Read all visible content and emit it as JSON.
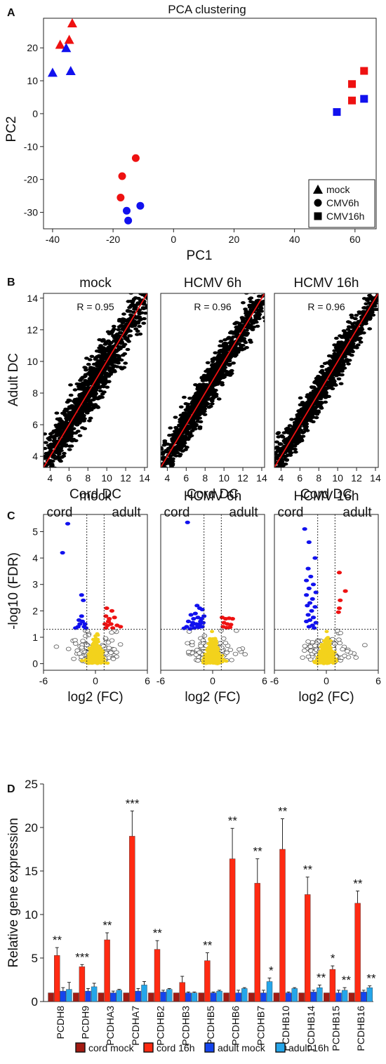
{
  "chart_data": [
    {
      "panel": "A",
      "type": "scatter",
      "title": "PCA clustering",
      "xlabel": "PC1",
      "ylabel": "PC2",
      "xlim": [
        -43,
        67
      ],
      "ylim": [
        -35,
        29
      ],
      "xticks": [
        "-40",
        "-20",
        "0",
        "20",
        "40",
        "60"
      ],
      "yticks": [
        "-30",
        "-20",
        "-10",
        "0",
        "10",
        "20"
      ],
      "legend_position": "bottom-right",
      "legend": [
        {
          "label": "mock",
          "shape": "triangle"
        },
        {
          "label": "CMV6h",
          "shape": "circle"
        },
        {
          "label": "CMV16h",
          "shape": "square"
        }
      ],
      "colors": {
        "red": "#ee1111",
        "blue": "#1111ee"
      },
      "points": [
        {
          "x": -33.5,
          "y": 27.5,
          "shape": "triangle",
          "color": "red"
        },
        {
          "x": -37.5,
          "y": 21,
          "shape": "triangle",
          "color": "red"
        },
        {
          "x": -34.5,
          "y": 22.5,
          "shape": "triangle",
          "color": "red"
        },
        {
          "x": -35.5,
          "y": 20,
          "shape": "triangle",
          "color": "blue"
        },
        {
          "x": -40,
          "y": 12.5,
          "shape": "triangle",
          "color": "blue"
        },
        {
          "x": -34,
          "y": 13,
          "shape": "triangle",
          "color": "blue"
        },
        {
          "x": -12.5,
          "y": -13.5,
          "shape": "circle",
          "color": "red"
        },
        {
          "x": -17,
          "y": -19,
          "shape": "circle",
          "color": "red"
        },
        {
          "x": -17.5,
          "y": -25.5,
          "shape": "circle",
          "color": "red"
        },
        {
          "x": -15.5,
          "y": -29.5,
          "shape": "circle",
          "color": "blue"
        },
        {
          "x": -11,
          "y": -28,
          "shape": "circle",
          "color": "blue"
        },
        {
          "x": -15,
          "y": -32.5,
          "shape": "circle",
          "color": "blue"
        },
        {
          "x": 59,
          "y": 9,
          "shape": "square",
          "color": "red"
        },
        {
          "x": 63,
          "y": 13,
          "shape": "square",
          "color": "red"
        },
        {
          "x": 59,
          "y": 4,
          "shape": "square",
          "color": "red"
        },
        {
          "x": 63,
          "y": 4.5,
          "shape": "square",
          "color": "blue"
        },
        {
          "x": 54,
          "y": 0.5,
          "shape": "square",
          "color": "blue"
        }
      ]
    },
    {
      "panel": "B",
      "type": "scatter",
      "ylabel": "Adult DC",
      "xlabel": "Cord DC",
      "xlim": [
        3.3,
        14.3
      ],
      "ylim": [
        3.3,
        14.3
      ],
      "xticks": [
        "4",
        "6",
        "8",
        "10",
        "12",
        "14"
      ],
      "yticks": [
        "4",
        "6",
        "8",
        "10",
        "12",
        "14"
      ],
      "fit_line_color": "#ee1111",
      "subplots": [
        {
          "title": "mock",
          "r": "R = 0.95"
        },
        {
          "title": "HCMV 6h",
          "r": "R = 0.96"
        },
        {
          "title": "HCMV 16h",
          "r": "R = 0.96"
        }
      ]
    },
    {
      "panel": "C",
      "type": "scatter",
      "ylabel": "-log10 (FDR)",
      "xlabel": "log2 (FC)",
      "xlim": [
        -6,
        6
      ],
      "ylim": [
        -0.25,
        5.65
      ],
      "xticks": [
        "-6",
        "0",
        "6"
      ],
      "yticks": [
        "0",
        "1",
        "2",
        "3",
        "4",
        "5"
      ],
      "side_labels": [
        "cord",
        "adult"
      ],
      "fc_threshold": 1,
      "fdr_threshold": 1.3,
      "colors": {
        "up": "#ee1111",
        "down": "#1111ee",
        "nonsig": "#f3d21c"
      },
      "subplots": [
        {
          "title": "mock",
          "down": [
            [
              -3.2,
              5.3
            ],
            [
              -3.8,
              4.2
            ],
            [
              -1.6,
              2.6
            ],
            [
              -1.4,
              2.4
            ],
            [
              -1.3,
              1.4
            ],
            [
              -1.5,
              1.6
            ],
            [
              -1.8,
              1.5
            ],
            [
              -2.0,
              1.4
            ],
            [
              -2.3,
              1.35
            ],
            [
              -1.2,
              1.5
            ],
            [
              -1.1,
              1.35
            ],
            [
              -1.6,
              1.8
            ],
            [
              -1.9,
              1.65
            ]
          ],
          "up": [
            [
              1.3,
              2.1
            ],
            [
              1.9,
              2.0
            ],
            [
              1.2,
              1.8
            ],
            [
              1.6,
              1.7
            ],
            [
              2.2,
              1.75
            ],
            [
              1.1,
              1.5
            ],
            [
              1.4,
              1.45
            ],
            [
              1.8,
              1.5
            ],
            [
              2.5,
              1.45
            ],
            [
              2.9,
              1.4
            ],
            [
              1.2,
              1.35
            ],
            [
              2.0,
              1.35
            ],
            [
              1.5,
              1.6
            ]
          ]
        },
        {
          "title": "HCMV 6h",
          "down": [
            [
              -2.9,
              5.35
            ],
            [
              -1.8,
              2.2
            ],
            [
              -1.2,
              2.05
            ],
            [
              -1.5,
              2.1
            ],
            [
              -2.0,
              1.9
            ],
            [
              -2.5,
              1.85
            ],
            [
              -1.3,
              1.7
            ],
            [
              -1.7,
              1.75
            ],
            [
              -2.2,
              1.7
            ],
            [
              -2.8,
              1.6
            ],
            [
              -1.1,
              1.55
            ],
            [
              -1.5,
              1.5
            ],
            [
              -1.9,
              1.5
            ],
            [
              -2.4,
              1.45
            ],
            [
              -3.0,
              1.4
            ],
            [
              -1.2,
              1.4
            ],
            [
              -1.6,
              1.38
            ],
            [
              -2.1,
              1.35
            ],
            [
              -2.6,
              1.32
            ],
            [
              -3.3,
              1.34
            ],
            [
              -1.4,
              1.6
            ],
            [
              -1.0,
              1.8
            ],
            [
              -2.3,
              1.55
            ],
            [
              -1.7,
              1.42
            ]
          ],
          "up": [
            [
              1.1,
              1.75
            ],
            [
              1.5,
              1.7
            ],
            [
              1.9,
              1.72
            ],
            [
              2.3,
              1.7
            ],
            [
              1.3,
              1.55
            ],
            [
              1.7,
              1.5
            ],
            [
              2.1,
              1.48
            ],
            [
              1.2,
              1.4
            ],
            [
              1.6,
              1.36
            ],
            [
              2.0,
              1.38
            ]
          ]
        },
        {
          "title": "HCMV 16h",
          "down": [
            [
              -2.5,
              5.1
            ],
            [
              -2.0,
              4.6
            ],
            [
              -1.3,
              4.0
            ],
            [
              -2.1,
              3.6
            ],
            [
              -1.8,
              3.3
            ],
            [
              -2.3,
              3.15
            ],
            [
              -1.5,
              3.0
            ],
            [
              -2.0,
              2.85
            ],
            [
              -1.2,
              2.7
            ],
            [
              -2.3,
              2.6
            ],
            [
              -1.6,
              2.45
            ],
            [
              -1.9,
              2.3
            ],
            [
              -2.2,
              2.2
            ],
            [
              -1.3,
              2.15
            ],
            [
              -1.7,
              2.0
            ],
            [
              -2.1,
              1.85
            ],
            [
              -1.5,
              1.75
            ],
            [
              -1.9,
              1.65
            ],
            [
              -2.3,
              1.6
            ],
            [
              -1.2,
              1.55
            ],
            [
              -1.6,
              1.45
            ],
            [
              -2.0,
              1.4
            ],
            [
              -1.4,
              1.35
            ]
          ],
          "up": [
            [
              1.5,
              3.45
            ],
            [
              2.2,
              2.75
            ],
            [
              1.6,
              2.4
            ],
            [
              1.5,
              2.1
            ],
            [
              1.4,
              1.95
            ]
          ]
        }
      ]
    },
    {
      "panel": "D",
      "type": "bar",
      "ylabel": "Relative gene expression",
      "ylim": [
        0,
        25
      ],
      "yticks": [
        "0",
        "5",
        "10",
        "15",
        "20",
        "25"
      ],
      "categories": [
        "PCDH8",
        "PCDH9",
        "PCDHA3",
        "PCDHA7",
        "PCDHB2",
        "PCDHB3",
        "PCDHB5",
        "PCDHB6",
        "PCDHB7",
        "PCDHB10",
        "PCDHB14",
        "PCDHB15",
        "PCDHB16"
      ],
      "series": [
        {
          "name": "cord mock",
          "color": "#a31a12",
          "values": [
            1,
            1,
            1,
            1,
            1,
            1,
            1,
            1,
            1,
            1,
            1,
            1,
            1
          ]
        },
        {
          "name": "cord 16h",
          "color": "#ff2a12",
          "values": [
            5.3,
            4.0,
            7.1,
            19.0,
            6.0,
            2.2,
            4.7,
            16.4,
            13.6,
            17.5,
            12.3,
            3.7,
            11.3
          ]
        },
        {
          "name": "adult mock",
          "color": "#1444ee",
          "values": [
            1.2,
            1.2,
            1.0,
            1.2,
            1.1,
            1.0,
            1.0,
            1.0,
            1.0,
            1.0,
            1.1,
            1.0,
            1.1
          ]
        },
        {
          "name": "adult 16h",
          "color": "#25a6ea",
          "values": [
            1.4,
            1.7,
            1.3,
            1.9,
            1.4,
            1.0,
            1.2,
            1.5,
            2.3,
            1.5,
            1.6,
            1.3,
            1.6
          ]
        }
      ],
      "errors": {
        "cord 16h": [
          0.9,
          0.25,
          0.8,
          2.9,
          1.0,
          0.7,
          0.9,
          3.5,
          2.8,
          3.5,
          2.0,
          0.4,
          1.4
        ],
        "adult mock": [
          0.4,
          0.3,
          0.2,
          0.3,
          0.2,
          0.1,
          0.1,
          0.3,
          0.3,
          0.1,
          0.2,
          0.3,
          0.2
        ],
        "adult 16h": [
          0.8,
          0.4,
          0.1,
          0.4,
          0.1,
          0.1,
          0.1,
          0.1,
          0.4,
          0.1,
          0.3,
          0.3,
          0.2
        ]
      },
      "significance": [
        {
          "category": "PCDH8",
          "series": "cord 16h",
          "label": "**"
        },
        {
          "category": "PCDH9",
          "series": "cord 16h",
          "label": "***"
        },
        {
          "category": "PCDHA3",
          "series": "cord 16h",
          "label": "**"
        },
        {
          "category": "PCDHA7",
          "series": "cord 16h",
          "label": "***"
        },
        {
          "category": "PCDHB2",
          "series": "cord 16h",
          "label": "**"
        },
        {
          "category": "PCDHB5",
          "series": "cord 16h",
          "label": "**"
        },
        {
          "category": "PCDHB6",
          "series": "cord 16h",
          "label": "**"
        },
        {
          "category": "PCDHB7",
          "series": "cord 16h",
          "label": "**"
        },
        {
          "category": "PCDHB7",
          "series": "adult 16h",
          "label": "*"
        },
        {
          "category": "PCDHB10",
          "series": "cord 16h",
          "label": "**"
        },
        {
          "category": "PCDHB14",
          "series": "cord 16h",
          "label": "**"
        },
        {
          "category": "PCDHB14",
          "series": "adult 16h",
          "label": "**"
        },
        {
          "category": "PCDHB15",
          "series": "cord 16h",
          "label": "*"
        },
        {
          "category": "PCDHB15",
          "series": "adult 16h",
          "label": "**"
        },
        {
          "category": "PCDHB16",
          "series": "cord 16h",
          "label": "**"
        },
        {
          "category": "PCDHB16",
          "series": "adult 16h",
          "label": "**"
        }
      ],
      "legend_position": "bottom"
    }
  ],
  "panel_labels": [
    "A",
    "B",
    "C",
    "D"
  ]
}
